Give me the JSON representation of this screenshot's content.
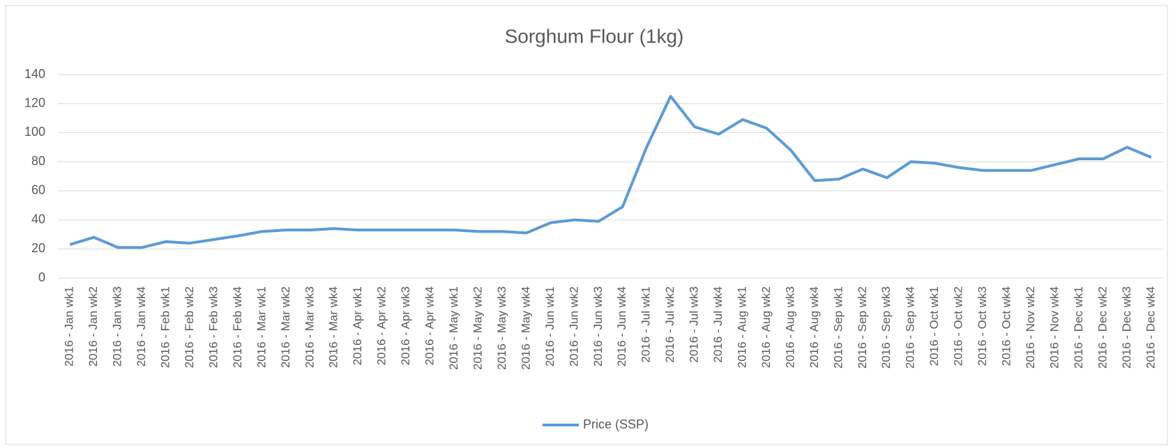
{
  "chart_data": {
    "type": "line",
    "title": "Sorghum Flour (1kg)",
    "categories": [
      "2016 - Jan wk1",
      "2016 - Jan wk2",
      "2016 - Jan wk3",
      "2016 - Jan wk4",
      "2016 - Feb wk1",
      "2016 - Feb wk2",
      "2016 - Feb wk3",
      "2016 - Feb wk4",
      "2016 - Mar wk1",
      "2016 - Mar wk2",
      "2016 - Mar wk3",
      "2016 - Mar wk4",
      "2016 - Apr wk1",
      "2016 - Apr wk2",
      "2016 - Apr wk3",
      "2016 - Apr wk4",
      "2016 - May wk1",
      "2016 - May wk2",
      "2016 - May wk3",
      "2016 - May wk4",
      "2016 - Jun wk1",
      "2016 - Jun wk2",
      "2016 - Jun wk3",
      "2016 - Jun wk4",
      "2016 - Jul wk1",
      "2016 - Jul wk2",
      "2016 - Jul wk3",
      "2016 - Jul wk4",
      "2016 - Aug wk1",
      "2016 - Aug wk2",
      "2016 - Aug wk3",
      "2016 - Aug wk4",
      "2016 - Sep wk1",
      "2016 - Sep wk2",
      "2016 - Sep wk3",
      "2016 - Sep wk4",
      "2016 - Oct wk1",
      "2016 - Oct wk2",
      "2016 - Oct wk3",
      "2016 - Oct wk4",
      "2016 - Nov wk2",
      "2016 - Nov wk4",
      "2016 - Dec wk1",
      "2016 - Dec wk2",
      "2016 - Dec wk3",
      "2016 - Dec wk4"
    ],
    "series": [
      {
        "name": "Price (SSP)",
        "color": "#5b9bd5",
        "values": [
          23,
          28,
          21,
          21,
          25,
          24,
          26.5,
          29,
          32,
          33,
          33,
          34,
          33,
          33,
          33,
          33,
          33,
          32,
          32,
          31,
          38,
          40,
          39,
          49,
          90,
          125,
          104,
          99,
          109,
          103,
          88,
          67,
          68,
          75,
          69,
          80,
          79,
          76,
          74,
          74,
          74,
          78,
          82,
          82,
          90,
          83
        ]
      }
    ],
    "ylim": [
      0,
      140
    ],
    "yticks": [
      0,
      20,
      40,
      60,
      80,
      100,
      120,
      140
    ],
    "grid": true,
    "legend": "bottom"
  }
}
